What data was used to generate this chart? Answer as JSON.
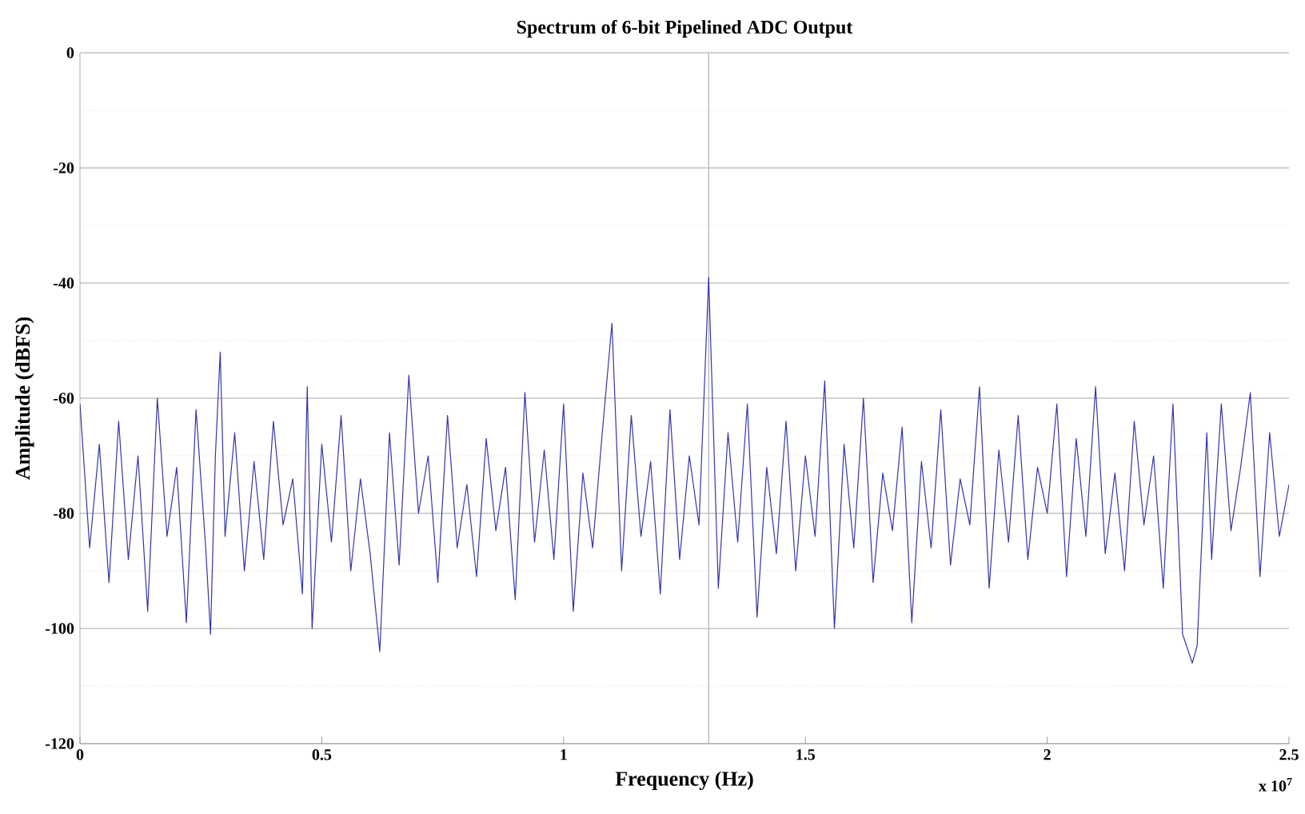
{
  "chart_data": {
    "type": "line",
    "title": "Spectrum of 6-bit Pipelined ADC Output",
    "xlabel": "Frequency (Hz)",
    "ylabel": "Amplitude (dBFS)",
    "annotations": [
      "x 10$^{7}$"
    ],
    "series": [
      {
        "color": "#3535a8",
        "x": [
          0,
          0.02,
          0.04,
          0.06,
          0.08,
          0.1,
          0.12,
          0.14,
          0.16,
          0.18,
          0.2,
          0.22,
          0.24,
          0.26,
          0.27,
          0.28,
          0.29,
          0.3,
          0.32,
          0.34,
          0.36,
          0.38,
          0.4,
          0.42,
          0.44,
          0.46,
          0.47,
          0.48,
          0.5,
          0.52,
          0.54,
          0.56,
          0.58,
          0.6,
          0.62,
          0.64,
          0.66,
          0.68,
          0.7,
          0.72,
          0.74,
          0.76,
          0.78,
          0.8,
          0.82,
          0.84,
          0.86,
          0.88,
          0.9,
          0.92,
          0.94,
          0.96,
          0.98,
          1.0,
          1.02,
          1.04,
          1.06,
          1.08,
          1.1,
          1.12,
          1.14,
          1.16,
          1.18,
          1.2,
          1.22,
          1.24,
          1.26,
          1.28,
          1.3,
          1.32,
          1.34,
          1.36,
          1.38,
          1.4,
          1.42,
          1.44,
          1.46,
          1.48,
          1.5,
          1.52,
          1.54,
          1.56,
          1.58,
          1.6,
          1.62,
          1.64,
          1.66,
          1.68,
          1.7,
          1.72,
          1.74,
          1.76,
          1.78,
          1.8,
          1.82,
          1.84,
          1.86,
          1.88,
          1.9,
          1.92,
          1.94,
          1.96,
          1.98,
          2.0,
          2.02,
          2.04,
          2.06,
          2.08,
          2.1,
          2.12,
          2.14,
          2.16,
          2.18,
          2.2,
          2.22,
          2.24,
          2.26,
          2.28,
          2.3,
          2.31,
          2.32,
          2.33,
          2.34,
          2.36,
          2.38,
          2.4,
          2.42,
          2.44,
          2.46,
          2.48,
          2.5
        ],
        "values": [
          -61,
          -86,
          -68,
          -92,
          -64,
          -88,
          -70,
          -97,
          -60,
          -84,
          -72,
          -99,
          -62,
          -86,
          -101,
          -70,
          -52,
          -84,
          -66,
          -90,
          -71,
          -88,
          -64,
          -82,
          -74,
          -94,
          -58,
          -100,
          -68,
          -85,
          -63,
          -90,
          -74,
          -87,
          -104,
          -66,
          -89,
          -56,
          -80,
          -70,
          -92,
          -63,
          -86,
          -75,
          -91,
          -67,
          -83,
          -72,
          -95,
          -59,
          -85,
          -69,
          -88,
          -61,
          -97,
          -73,
          -86,
          -66,
          -47,
          -90,
          -63,
          -84,
          -71,
          -94,
          -62,
          -88,
          -70,
          -82,
          -39,
          -93,
          -66,
          -85,
          -61,
          -98,
          -72,
          -87,
          -64,
          -90,
          -70,
          -84,
          -57,
          -100,
          -68,
          -86,
          -60,
          -92,
          -73,
          -83,
          -65,
          -99,
          -71,
          -86,
          -62,
          -89,
          -74,
          -82,
          -58,
          -93,
          -69,
          -85,
          -63,
          -88,
          -72,
          -80,
          -61,
          -91,
          -67,
          -84,
          -58,
          -87,
          -73,
          -90,
          -64,
          -82,
          -70,
          -93,
          -61,
          -101,
          -106,
          -103,
          -84,
          -66,
          -88,
          -61,
          -83,
          -72,
          -59,
          -91,
          -66,
          -84,
          -75
        ]
      }
    ],
    "xlim": [
      0,
      2.5
    ],
    "ylim": [
      -120,
      0
    ],
    "xticks": [
      0,
      0.5,
      1,
      1.5,
      2,
      2.5
    ],
    "yticks": [
      -120,
      -100,
      -80,
      -60,
      -40,
      -20,
      0
    ],
    "grid": "y",
    "ref_lines": [
      {
        "axis": "x",
        "value": 1.3,
        "color": "#b8b8c8"
      }
    ]
  }
}
